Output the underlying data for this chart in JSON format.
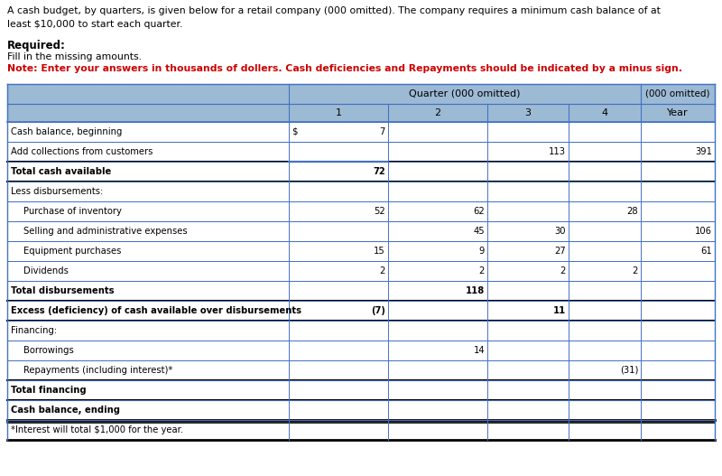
{
  "title_line1": "A cash budget, by quarters, is given below for a retail company (000 omitted). The company requires a minimum cash balance of at",
  "title_line2": "least $10,000 to start each quarter.",
  "required_label": "Required:",
  "fill_label": "Fill in the missing amounts.",
  "note_label": "Note: Enter your answers in thousands of dollers. Cash deficiencies and Repayments should be indicated by a minus sign.",
  "rows": [
    [
      "Cash balance, beginning",
      "$",
      "7",
      "",
      "",
      "",
      ""
    ],
    [
      "Add collections from customers",
      "",
      "",
      "",
      "113",
      "",
      "391"
    ],
    [
      "Total cash available",
      "",
      "72",
      "",
      "",
      "",
      ""
    ],
    [
      "Less disbursements:",
      "",
      "",
      "",
      "",
      "",
      ""
    ],
    [
      "  Purchase of inventory",
      "",
      "52",
      "62",
      "",
      "28",
      ""
    ],
    [
      "  Selling and administrative expenses",
      "",
      "",
      "45",
      "30",
      "",
      "106"
    ],
    [
      "  Equipment purchases",
      "",
      "15",
      "9",
      "27",
      "",
      "61"
    ],
    [
      "  Dividends",
      "",
      "2",
      "2",
      "2",
      "2",
      ""
    ],
    [
      "Total disbursements",
      "",
      "",
      "118",
      "",
      "",
      ""
    ],
    [
      "Excess (deficiency) of cash available over disbursements",
      "",
      "(7)",
      "",
      "11",
      "",
      ""
    ],
    [
      "Financing:",
      "",
      "",
      "",
      "",
      "",
      ""
    ],
    [
      "  Borrowings",
      "",
      "",
      "14",
      "",
      "",
      ""
    ],
    [
      "  Repayments (including interest)*",
      "",
      "",
      "",
      "",
      "(31)",
      ""
    ],
    [
      "Total financing",
      "",
      "",
      "",
      "",
      "",
      ""
    ],
    [
      "Cash balance, ending",
      "",
      "",
      "",
      "",
      "",
      ""
    ],
    [
      "*Interest will total $1,000 for the year.",
      "",
      "",
      "",
      "",
      "",
      ""
    ]
  ],
  "header_bg": "#9dbad5",
  "border_color": "#4472c4",
  "border_color_dark": "#000000",
  "note_color": "#cc0000",
  "figsize": [
    8.0,
    5.27
  ],
  "dpi": 100
}
